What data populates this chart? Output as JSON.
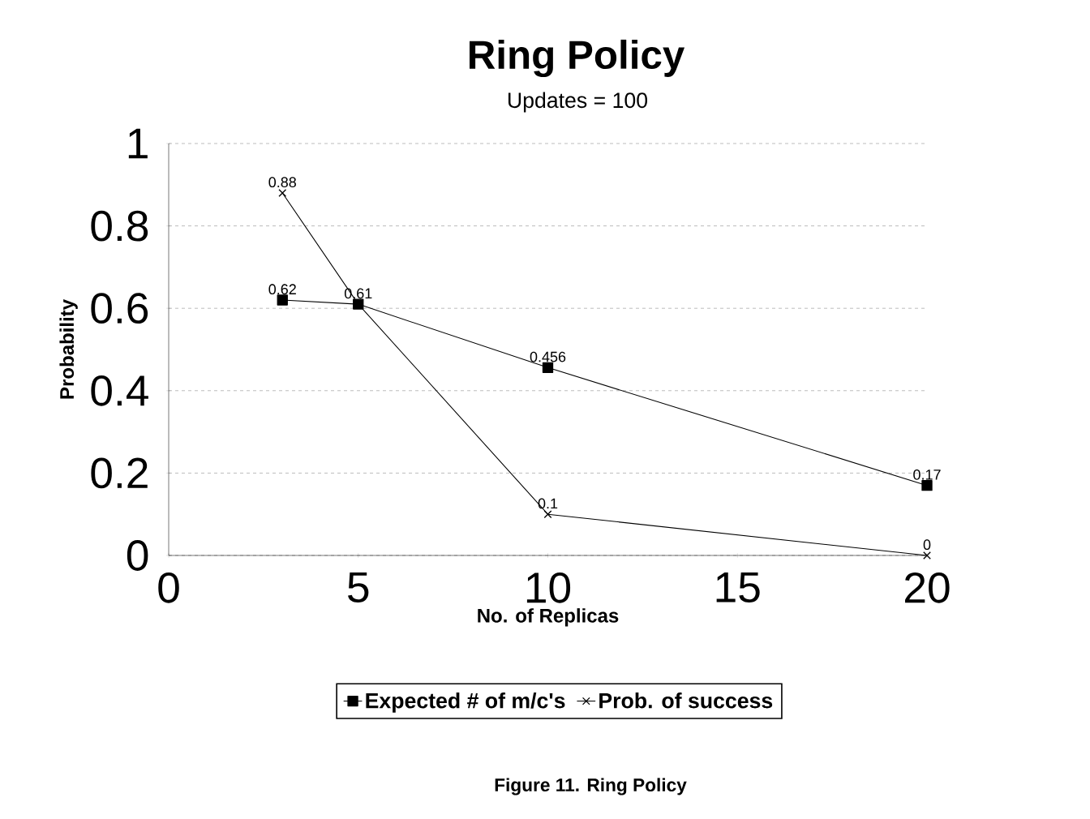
{
  "chart_data": {
    "type": "line",
    "title": "Ring Policy",
    "subtitle": "Updates = 100",
    "xlabel": "No. of Replicas",
    "ylabel": "Probability",
    "x": [
      3,
      5,
      10,
      20
    ],
    "series": [
      {
        "name": "Expected # of m/c's",
        "color": "#000000",
        "marker": "square",
        "values": [
          0.62,
          0.61,
          0.456,
          0.17
        ],
        "value_labels": [
          "0.62",
          "0.61",
          "0.456",
          "0.17"
        ]
      },
      {
        "name": "Prob. of success",
        "color": "#000000",
        "marker": "cross",
        "values": [
          0.88,
          0.61,
          0.1,
          0
        ],
        "value_labels": [
          "0.88",
          null,
          "0.1",
          "0"
        ]
      }
    ],
    "xlim": [
      0,
      20
    ],
    "xticks": [
      0,
      5,
      10,
      15,
      20
    ],
    "ylim": [
      0,
      1
    ],
    "yticks": [
      0,
      0.2,
      0.4,
      0.6,
      0.8,
      1
    ],
    "grid": "y",
    "legend": "bottom",
    "line_style": "solid",
    "annotations": [
      "Figure 11.  Ring Policy"
    ]
  }
}
